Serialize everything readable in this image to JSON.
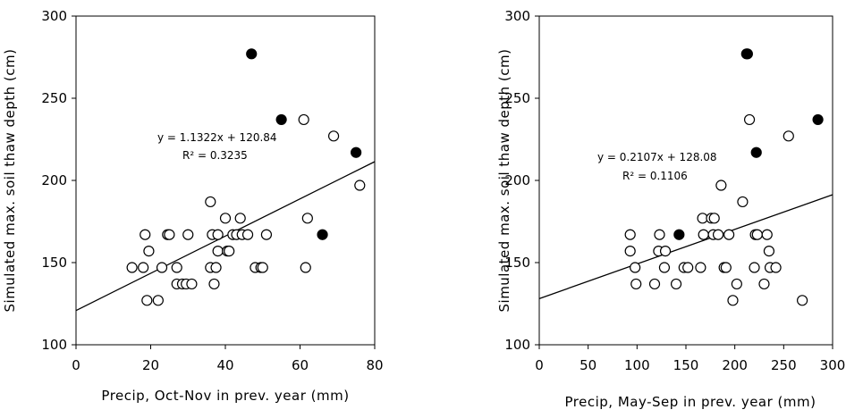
{
  "chart_data": [
    {
      "type": "scatter",
      "xlabel": "Precip, Oct-Nov in prev. year (mm)",
      "ylabel": "Simulated max. soil thaw depth (cm)",
      "xlim": [
        0,
        80
      ],
      "ylim": [
        100,
        300
      ],
      "xticks": [
        0,
        20,
        40,
        60,
        80
      ],
      "yticks": [
        100,
        150,
        200,
        250,
        300
      ],
      "grid": false,
      "equation": "y = 1.1322x + 120.84",
      "r_squared": "R² = 0.3235",
      "trendline": {
        "slope": 1.1322,
        "intercept": 120.84
      },
      "series": [
        {
          "marker": "open-circle",
          "points": [
            [
              15,
              147
            ],
            [
              18,
              147
            ],
            [
              18.5,
              167
            ],
            [
              19,
              127
            ],
            [
              19.5,
              157
            ],
            [
              22,
              127
            ],
            [
              23,
              147
            ],
            [
              24.5,
              167
            ],
            [
              25,
              167
            ],
            [
              27,
              137
            ],
            [
              27,
              147
            ],
            [
              28.5,
              137
            ],
            [
              29.5,
              137
            ],
            [
              30,
              167
            ],
            [
              31,
              137
            ],
            [
              36,
              147
            ],
            [
              36,
              187
            ],
            [
              36.5,
              167
            ],
            [
              37,
              137
            ],
            [
              37.5,
              147
            ],
            [
              38,
              167
            ],
            [
              38,
              157
            ],
            [
              40,
              177
            ],
            [
              40.5,
              157
            ],
            [
              41,
              157
            ],
            [
              42,
              167
            ],
            [
              43,
              167
            ],
            [
              44,
              177
            ],
            [
              44.5,
              167
            ],
            [
              46,
              167
            ],
            [
              48,
              147
            ],
            [
              49.5,
              147
            ],
            [
              50,
              147
            ],
            [
              51,
              167
            ],
            [
              61,
              237
            ],
            [
              62,
              177
            ],
            [
              61.5,
              147
            ],
            [
              69,
              227
            ],
            [
              76,
              197
            ]
          ]
        },
        {
          "marker": "filled-circle",
          "points": [
            [
              47,
              277
            ],
            [
              55,
              237
            ],
            [
              66,
              167
            ],
            [
              75,
              217
            ]
          ]
        }
      ]
    },
    {
      "type": "scatter",
      "xlabel": "Precip, May-Sep in prev. year (mm)",
      "ylabel": "Simulated max. soil thaw depth (cm)",
      "xlim": [
        0,
        300
      ],
      "ylim": [
        100,
        300
      ],
      "xticks": [
        0,
        50,
        100,
        150,
        200,
        250,
        300
      ],
      "yticks": [
        100,
        150,
        200,
        250,
        300
      ],
      "grid": false,
      "equation": "y = 0.2107x + 128.08",
      "r_squared": "R² = 0.1106",
      "trendline": {
        "slope": 0.2107,
        "intercept": 128.08
      },
      "series": [
        {
          "marker": "open-circle",
          "points": [
            [
              93,
              167
            ],
            [
              93,
              157
            ],
            [
              98,
              147
            ],
            [
              99,
              137
            ],
            [
              118,
              137
            ],
            [
              122,
              157
            ],
            [
              123,
              167
            ],
            [
              128,
              147
            ],
            [
              129,
              157
            ],
            [
              140,
              137
            ],
            [
              148,
              147
            ],
            [
              152,
              147
            ],
            [
              165,
              147
            ],
            [
              167,
              177
            ],
            [
              168,
              167
            ],
            [
              176,
              177
            ],
            [
              178,
              167
            ],
            [
              179,
              177
            ],
            [
              183,
              167
            ],
            [
              186,
              197
            ],
            [
              189,
              147
            ],
            [
              191,
              147
            ],
            [
              194,
              167
            ],
            [
              198,
              127
            ],
            [
              202,
              137
            ],
            [
              208,
              187
            ],
            [
              215,
              237
            ],
            [
              220,
              147
            ],
            [
              221,
              167
            ],
            [
              223,
              167
            ],
            [
              230,
              137
            ],
            [
              233,
              167
            ],
            [
              235,
              157
            ],
            [
              236,
              147
            ],
            [
              242,
              147
            ],
            [
              255,
              227
            ],
            [
              269,
              127
            ]
          ]
        },
        {
          "marker": "filled-circle",
          "points": [
            [
              143,
              167
            ],
            [
              212,
              277
            ],
            [
              213,
              277
            ],
            [
              222,
              217
            ],
            [
              285,
              237
            ]
          ]
        }
      ]
    }
  ]
}
